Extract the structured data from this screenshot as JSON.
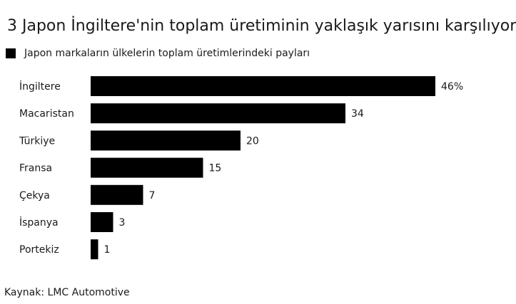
{
  "title": "3 Japon İngiltere'nin toplam üretiminin yaklaşık yarısını karşılıyor",
  "legend_label": "Japon markaların ülkelerin toplam üretimlerindeki payları",
  "source": "Kaynak: LMC Automotive",
  "chart_data": {
    "type": "bar",
    "orientation": "horizontal",
    "categories": [
      "İngiltere",
      "Macaristan",
      "Türkiye",
      "Fransa",
      "Çekya",
      "İspanya",
      "Portekiz"
    ],
    "values": [
      46,
      34,
      20,
      15,
      7,
      3,
      1
    ],
    "value_labels": [
      "46%",
      "34",
      "20",
      "15",
      "7",
      "3",
      "1"
    ],
    "series": [
      {
        "name": "Japon markaların ülkelerin toplam üretimlerindeki payları",
        "values": [
          46,
          34,
          20,
          15,
          7,
          3,
          1
        ]
      }
    ],
    "xlim": [
      0,
      46
    ],
    "bar_color": "#000000",
    "grid": false,
    "legend_position": "top-left",
    "title": "3 Japon İngiltere'nin toplam üretiminin yaklaşık yarısını karşılıyor"
  }
}
